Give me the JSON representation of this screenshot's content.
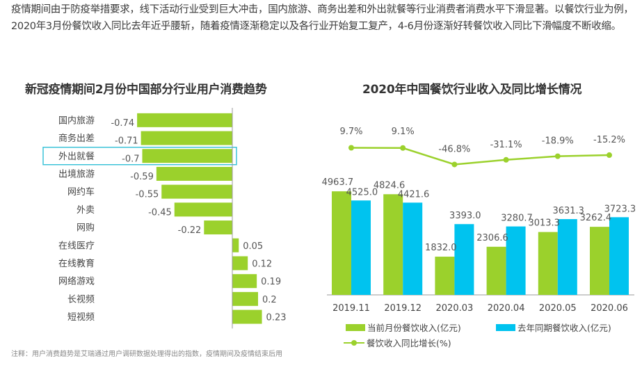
{
  "intro_text": "疫情期间由于防疫举措要求，线下活动行业受到巨大冲击，国内旅游、商务出差和外出就餐等行业消费者消费水平下滑显著。以餐饮行业为例，2020年3月份餐饮收入同比去年近乎腰斩，随着疫情逐渐稳定以及各行业开始复工复产，4-6月份逐渐好转餐饮收入同比下滑幅度不断收缩。",
  "footnote": "注释：用户消费趋势是艾瑞通过用户调研数据处理得出的指数，疫情期间及疫情结束后用",
  "colors": {
    "green": "#9bd12c",
    "blue": "#00c3ef",
    "highlight": "#3cc3d8",
    "axis": "#999999"
  },
  "chart_data": [
    {
      "type": "bar",
      "orientation": "horizontal",
      "title": "新冠疫情期间2月份中国部分行业用户消费趋势",
      "categories": [
        "国内旅游",
        "商务出差",
        "外出就餐",
        "出境旅游",
        "网约车",
        "外卖",
        "网购",
        "在线医疗",
        "在线教育",
        "网络游戏",
        "长视频",
        "短视频"
      ],
      "values": [
        -0.74,
        -0.71,
        -0.7,
        -0.59,
        -0.55,
        -0.45,
        -0.22,
        0.05,
        0.12,
        0.19,
        0.2,
        0.23
      ],
      "labels": [
        "-0.74",
        "-0.71",
        "-0.7",
        "-0.59",
        "-0.55",
        "-0.45",
        "-0.22",
        "0.05",
        "0.12",
        "0.19",
        "0.2",
        "0.23"
      ],
      "highlighted_category": "外出就餐",
      "xlabel": "",
      "ylabel": ""
    },
    {
      "type": "bar",
      "title": "2020年中国餐饮行业收入及同比增长情况",
      "categories": [
        "2019.11",
        "2019.12",
        "2020.03",
        "2020.04",
        "2020.05",
        "2020.06"
      ],
      "series": [
        {
          "name": "当前月份餐饮收入(亿元)",
          "kind": "bar",
          "values": [
            4963.7,
            4824.6,
            1832.0,
            2306.6,
            3013.3,
            3262.4
          ],
          "labels": [
            "4963.7",
            "4824.6",
            "1832.0",
            "2306.6",
            "3013.3",
            "3262.4"
          ]
        },
        {
          "name": "去年同期餐饮收入(亿元)",
          "kind": "bar",
          "values": [
            4525.0,
            4421.6,
            3393.0,
            3280.7,
            3631.3,
            3723.3
          ],
          "labels": [
            "4525.0",
            "4421.6",
            "3393.0",
            "3280.7",
            "3631.3",
            "3723.3"
          ]
        },
        {
          "name": "餐饮收入同比增长(%)",
          "kind": "line",
          "values": [
            9.7,
            9.1,
            -46.8,
            -31.1,
            -18.9,
            -15.2
          ],
          "labels": [
            "9.7%",
            "9.1%",
            "-46.8%",
            "-31.1%",
            "-18.9%",
            "-15.2%"
          ]
        }
      ],
      "legend_position": "bottom",
      "xlabel": "",
      "ylabel": ""
    }
  ]
}
